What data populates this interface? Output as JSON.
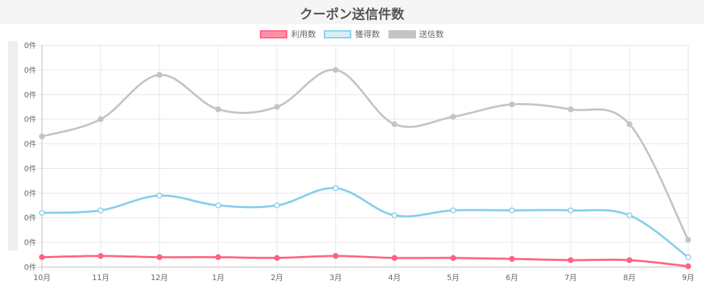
{
  "title": "クーポン送信件数",
  "legend": [
    {
      "label": "利用数",
      "color": "#ff6384",
      "fill": "#ff8fa6"
    },
    {
      "label": "獲得数",
      "color": "#87ceeb",
      "fill": "#d6eef8"
    },
    {
      "label": "送信数",
      "color": "#c4c4c4",
      "fill": "#c4c4c4"
    }
  ],
  "chart_data": {
    "type": "line",
    "categories": [
      "10月",
      "11月",
      "12月",
      "1月",
      "2月",
      "3月",
      "4月",
      "5月",
      "6月",
      "7月",
      "8月",
      "9月"
    ],
    "y_tick_labels": [
      "0件",
      "0件",
      "0件",
      "0件",
      "0件",
      "0件",
      "0件",
      "0件",
      "0件",
      "0件"
    ],
    "ylim": [
      0,
      9
    ],
    "grid": true,
    "legend_position": "top-center",
    "series": [
      {
        "name": "送信数",
        "color": "#c4c4c4",
        "values": [
          5.3,
          6.0,
          7.8,
          6.4,
          6.5,
          8.0,
          5.8,
          6.1,
          6.6,
          6.4,
          5.8,
          1.1
        ]
      },
      {
        "name": "獲得数",
        "color": "#87ceeb",
        "values": [
          2.2,
          2.3,
          2.9,
          2.5,
          2.5,
          3.2,
          2.1,
          2.3,
          2.3,
          2.3,
          2.1,
          0.4
        ]
      },
      {
        "name": "利用数",
        "color": "#ff6384",
        "values": [
          0.4,
          0.45,
          0.4,
          0.4,
          0.37,
          0.45,
          0.37,
          0.37,
          0.33,
          0.28,
          0.28,
          0.03
        ]
      }
    ]
  }
}
